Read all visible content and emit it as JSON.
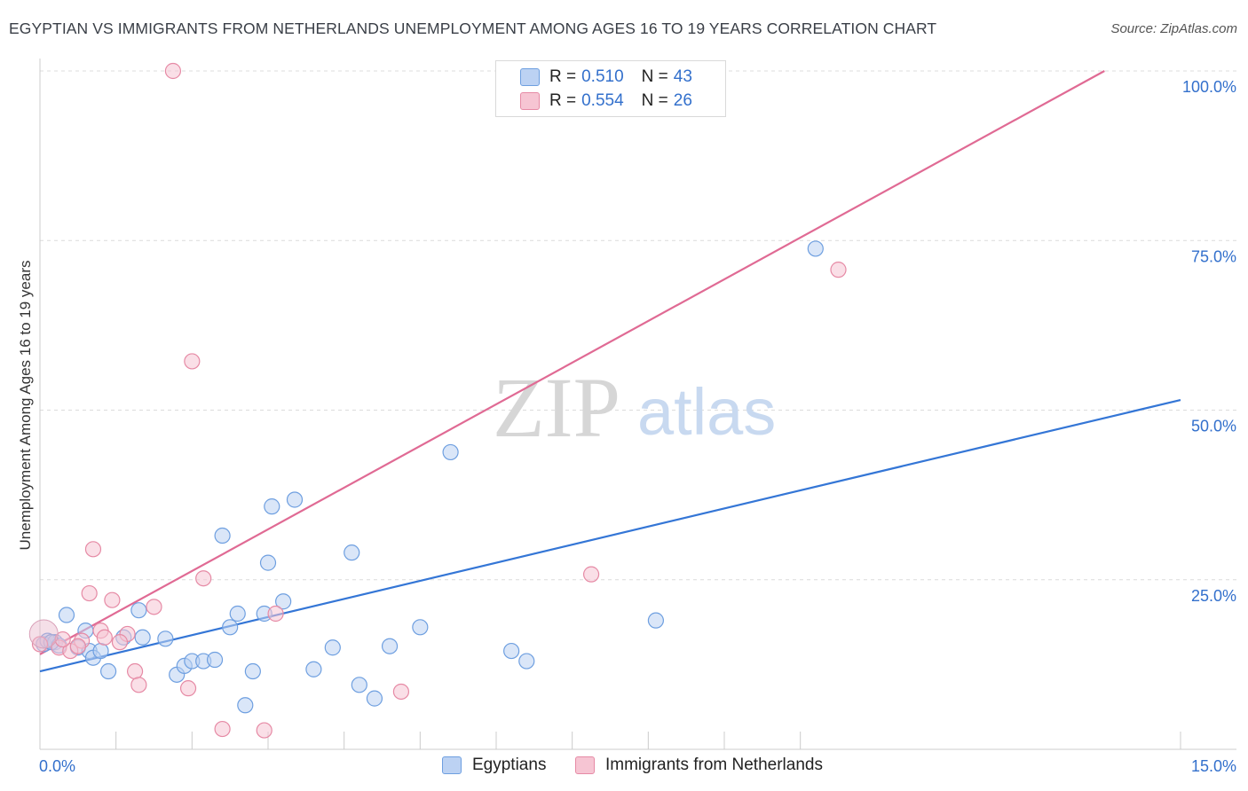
{
  "title": "EGYPTIAN VS IMMIGRANTS FROM NETHERLANDS UNEMPLOYMENT AMONG AGES 16 TO 19 YEARS CORRELATION CHART",
  "source": "Source: ZipAtlas.com",
  "watermark": {
    "zip": "ZIP",
    "atlas": "atlas"
  },
  "legend": {
    "rows": [
      {
        "r_label": "R =",
        "r_value": "0.510",
        "n_label": "N =",
        "n_value": "43"
      },
      {
        "r_label": "R =",
        "r_value": "0.554",
        "n_label": "N =",
        "n_value": "26"
      }
    ]
  },
  "bottom_legend": {
    "series1": "Egyptians",
    "series2": "Immigrants from Netherlands"
  },
  "chart_data": {
    "type": "scatter",
    "title": "EGYPTIAN VS IMMIGRANTS FROM NETHERLANDS UNEMPLOYMENT AMONG AGES 16 TO 19 YEARS CORRELATION CHART",
    "xlabel": "",
    "ylabel": "Unemployment Among Ages 16 to 19 years",
    "xlim": [
      0,
      15
    ],
    "ylim": [
      0,
      100
    ],
    "x_tick_labels": [
      "0.0%",
      "15.0%"
    ],
    "y_ticks": [
      25,
      50,
      75,
      100
    ],
    "y_tick_labels": [
      "25.0%",
      "50.0%",
      "75.0%",
      "100.0%"
    ],
    "grid": true,
    "series": [
      {
        "name": "Egyptians",
        "color": "#6e9fe0",
        "fill": "#bcd2f3",
        "line_color": "#3476d6",
        "trend": [
          [
            0,
            11.5
          ],
          [
            15,
            51.5
          ]
        ],
        "points": [
          [
            0.05,
            15.5
          ],
          [
            0.1,
            16.0
          ],
          [
            0.2,
            15.8
          ],
          [
            0.25,
            15.3
          ],
          [
            0.35,
            19.8
          ],
          [
            0.5,
            15.0
          ],
          [
            0.6,
            17.5
          ],
          [
            0.65,
            14.5
          ],
          [
            0.7,
            13.5
          ],
          [
            0.8,
            14.5
          ],
          [
            0.9,
            11.5
          ],
          [
            1.1,
            16.5
          ],
          [
            1.3,
            20.5
          ],
          [
            1.35,
            16.5
          ],
          [
            1.65,
            16.3
          ],
          [
            1.8,
            11.0
          ],
          [
            1.9,
            12.3
          ],
          [
            2.0,
            13.0
          ],
          [
            2.15,
            13.0
          ],
          [
            2.3,
            13.2
          ],
          [
            2.4,
            31.5
          ],
          [
            2.5,
            18.0
          ],
          [
            2.6,
            20.0
          ],
          [
            2.7,
            6.5
          ],
          [
            2.8,
            11.5
          ],
          [
            2.95,
            20.0
          ],
          [
            3.0,
            27.5
          ],
          [
            3.05,
            35.8
          ],
          [
            3.2,
            21.8
          ],
          [
            3.35,
            36.8
          ],
          [
            3.6,
            11.8
          ],
          [
            3.85,
            15.0
          ],
          [
            4.1,
            29.0
          ],
          [
            4.2,
            9.5
          ],
          [
            4.4,
            7.5
          ],
          [
            4.6,
            15.2
          ],
          [
            5.0,
            18.0
          ],
          [
            5.4,
            43.8
          ],
          [
            6.2,
            14.5
          ],
          [
            6.4,
            13.0
          ],
          [
            8.1,
            19.0
          ],
          [
            10.2,
            73.8
          ],
          [
            0.15,
            15.8
          ]
        ]
      },
      {
        "name": "Immigrants from Netherlands",
        "color": "#e68aa5",
        "fill": "#f6c5d3",
        "line_color": "#e06a94",
        "trend": [
          [
            0,
            14.0
          ],
          [
            14.0,
            100
          ]
        ],
        "points": [
          [
            0.0,
            15.5
          ],
          [
            0.25,
            15.0
          ],
          [
            0.4,
            14.5
          ],
          [
            0.55,
            16.0
          ],
          [
            0.65,
            23.0
          ],
          [
            0.7,
            29.5
          ],
          [
            0.8,
            17.5
          ],
          [
            0.95,
            22.0
          ],
          [
            1.15,
            17.0
          ],
          [
            1.25,
            11.5
          ],
          [
            1.3,
            9.5
          ],
          [
            1.5,
            21.0
          ],
          [
            1.75,
            100.0
          ],
          [
            1.95,
            9.0
          ],
          [
            2.0,
            57.2
          ],
          [
            2.15,
            25.2
          ],
          [
            2.4,
            3.0
          ],
          [
            2.95,
            2.8
          ],
          [
            3.1,
            20.0
          ],
          [
            4.75,
            8.5
          ],
          [
            7.25,
            25.8
          ],
          [
            10.5,
            70.7
          ],
          [
            0.5,
            15.2
          ],
          [
            0.85,
            16.5
          ],
          [
            1.05,
            15.8
          ],
          [
            0.3,
            16.2
          ]
        ]
      }
    ]
  }
}
